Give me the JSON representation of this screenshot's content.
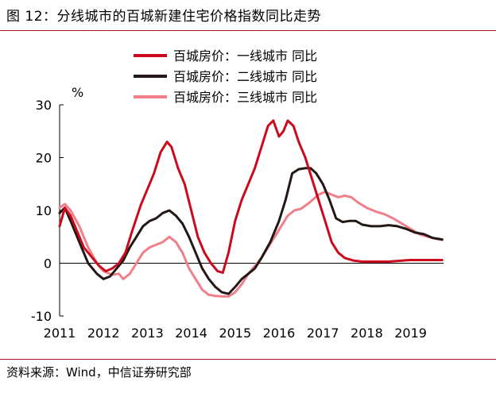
{
  "header": {
    "title": "图 12：分线城市的百城新建住宅价格指数同比走势"
  },
  "footer": {
    "source": "资料来源：Wind，中信证券研究部"
  },
  "chart_data": {
    "type": "line",
    "title": "图 12：分线城市的百城新建住宅价格指数同比走势",
    "xlabel": "",
    "ylabel": "%",
    "xlim": [
      2011.0,
      2019.75
    ],
    "ylim": [
      -10,
      30
    ],
    "yticks": [
      -10,
      0,
      10,
      20,
      30
    ],
    "xticks": [
      "2011",
      "2012",
      "2013",
      "2014",
      "2015",
      "2016",
      "2017",
      "2018",
      "2019"
    ],
    "legend_position": "top",
    "colors": {
      "tier1": "#cc0a1d",
      "tier2": "#231815",
      "tier3": "#f07f8a"
    },
    "series": [
      {
        "key": "tier1",
        "name": "百城房价：一线城市 同比",
        "points": [
          [
            2011.0,
            7
          ],
          [
            2011.12,
            10.5
          ],
          [
            2011.25,
            9
          ],
          [
            2011.4,
            6
          ],
          [
            2011.55,
            3
          ],
          [
            2011.75,
            1
          ],
          [
            2011.9,
            -0.5
          ],
          [
            2012.05,
            -1.5
          ],
          [
            2012.2,
            -1
          ],
          [
            2012.35,
            0
          ],
          [
            2012.5,
            2
          ],
          [
            2012.65,
            6
          ],
          [
            2012.85,
            11
          ],
          [
            2013.0,
            14
          ],
          [
            2013.15,
            17
          ],
          [
            2013.3,
            21
          ],
          [
            2013.45,
            23
          ],
          [
            2013.55,
            22
          ],
          [
            2013.7,
            18
          ],
          [
            2013.85,
            15
          ],
          [
            2014.0,
            10
          ],
          [
            2014.15,
            5
          ],
          [
            2014.3,
            2
          ],
          [
            2014.45,
            0
          ],
          [
            2014.6,
            -1.5
          ],
          [
            2014.72,
            -1.8
          ],
          [
            2014.85,
            2
          ],
          [
            2015.0,
            8
          ],
          [
            2015.15,
            12
          ],
          [
            2015.3,
            15
          ],
          [
            2015.45,
            18
          ],
          [
            2015.6,
            22
          ],
          [
            2015.75,
            26
          ],
          [
            2015.87,
            27
          ],
          [
            2016.0,
            24
          ],
          [
            2016.1,
            25
          ],
          [
            2016.2,
            27
          ],
          [
            2016.33,
            26
          ],
          [
            2016.45,
            23
          ],
          [
            2016.6,
            20
          ],
          [
            2016.75,
            16
          ],
          [
            2016.9,
            12
          ],
          [
            2017.05,
            8
          ],
          [
            2017.2,
            4
          ],
          [
            2017.35,
            2
          ],
          [
            2017.5,
            1
          ],
          [
            2017.7,
            0.5
          ],
          [
            2017.9,
            0.3
          ],
          [
            2018.2,
            0.3
          ],
          [
            2018.5,
            0.3
          ],
          [
            2018.8,
            0.5
          ],
          [
            2019.0,
            0.6
          ],
          [
            2019.2,
            0.6
          ],
          [
            2019.5,
            0.6
          ],
          [
            2019.72,
            0.6
          ]
        ]
      },
      {
        "key": "tier2",
        "name": "百城房价：二线城市 同比",
        "points": [
          [
            2011.0,
            9.5
          ],
          [
            2011.12,
            10.5
          ],
          [
            2011.25,
            8
          ],
          [
            2011.45,
            4
          ],
          [
            2011.65,
            0
          ],
          [
            2011.85,
            -2
          ],
          [
            2012.0,
            -3
          ],
          [
            2012.15,
            -2.5
          ],
          [
            2012.3,
            -1
          ],
          [
            2012.45,
            0.5
          ],
          [
            2012.6,
            3
          ],
          [
            2012.75,
            5
          ],
          [
            2012.9,
            7
          ],
          [
            2013.05,
            8
          ],
          [
            2013.2,
            8.5
          ],
          [
            2013.35,
            9.5
          ],
          [
            2013.5,
            10
          ],
          [
            2013.65,
            9
          ],
          [
            2013.8,
            7.5
          ],
          [
            2013.95,
            5
          ],
          [
            2014.1,
            2
          ],
          [
            2014.25,
            -1
          ],
          [
            2014.4,
            -3
          ],
          [
            2014.55,
            -4.5
          ],
          [
            2014.7,
            -5.5
          ],
          [
            2014.85,
            -5.8
          ],
          [
            2015.0,
            -4.5
          ],
          [
            2015.15,
            -3
          ],
          [
            2015.3,
            -2
          ],
          [
            2015.45,
            -1
          ],
          [
            2015.6,
            1
          ],
          [
            2015.8,
            4
          ],
          [
            2016.0,
            8
          ],
          [
            2016.15,
            12
          ],
          [
            2016.3,
            17
          ],
          [
            2016.45,
            17.8
          ],
          [
            2016.6,
            18
          ],
          [
            2016.72,
            18
          ],
          [
            2016.85,
            17
          ],
          [
            2017.0,
            15
          ],
          [
            2017.15,
            12
          ],
          [
            2017.3,
            8.5
          ],
          [
            2017.45,
            7.8
          ],
          [
            2017.6,
            8
          ],
          [
            2017.75,
            8
          ],
          [
            2017.9,
            7.3
          ],
          [
            2018.1,
            7
          ],
          [
            2018.3,
            7
          ],
          [
            2018.5,
            7.2
          ],
          [
            2018.7,
            7
          ],
          [
            2018.9,
            6.5
          ],
          [
            2019.1,
            5.8
          ],
          [
            2019.3,
            5.5
          ],
          [
            2019.5,
            4.8
          ],
          [
            2019.72,
            4.5
          ]
        ]
      },
      {
        "key": "tier3",
        "name": "百城房价：三线城市 同比",
        "points": [
          [
            2011.0,
            10.5
          ],
          [
            2011.12,
            11.2
          ],
          [
            2011.25,
            10
          ],
          [
            2011.45,
            7
          ],
          [
            2011.65,
            3
          ],
          [
            2011.85,
            0
          ],
          [
            2012.0,
            -1.5
          ],
          [
            2012.2,
            -2.2
          ],
          [
            2012.35,
            -2
          ],
          [
            2012.45,
            -3
          ],
          [
            2012.6,
            -2
          ],
          [
            2012.75,
            0
          ],
          [
            2012.9,
            2
          ],
          [
            2013.05,
            3
          ],
          [
            2013.2,
            3.5
          ],
          [
            2013.35,
            4
          ],
          [
            2013.5,
            5
          ],
          [
            2013.65,
            4
          ],
          [
            2013.8,
            2
          ],
          [
            2013.95,
            -1
          ],
          [
            2014.1,
            -3
          ],
          [
            2014.25,
            -5
          ],
          [
            2014.4,
            -6
          ],
          [
            2014.55,
            -6.2
          ],
          [
            2014.72,
            -6.3
          ],
          [
            2014.85,
            -6.3
          ],
          [
            2015.0,
            -5.5
          ],
          [
            2015.15,
            -4
          ],
          [
            2015.3,
            -2
          ],
          [
            2015.45,
            -0.5
          ],
          [
            2015.6,
            1
          ],
          [
            2015.75,
            3
          ],
          [
            2015.9,
            5
          ],
          [
            2016.05,
            7
          ],
          [
            2016.2,
            9
          ],
          [
            2016.35,
            10
          ],
          [
            2016.5,
            10.3
          ],
          [
            2016.7,
            11.5
          ],
          [
            2016.9,
            13
          ],
          [
            2017.05,
            13.5
          ],
          [
            2017.2,
            13
          ],
          [
            2017.35,
            12.5
          ],
          [
            2017.5,
            12.8
          ],
          [
            2017.65,
            12.5
          ],
          [
            2017.8,
            11.5
          ],
          [
            2018.0,
            10.5
          ],
          [
            2018.2,
            9.8
          ],
          [
            2018.4,
            9.3
          ],
          [
            2018.6,
            8.5
          ],
          [
            2018.8,
            7.5
          ],
          [
            2019.0,
            6.5
          ],
          [
            2019.2,
            5.5
          ],
          [
            2019.4,
            5
          ],
          [
            2019.6,
            4.6
          ],
          [
            2019.72,
            4.4
          ]
        ]
      }
    ]
  }
}
